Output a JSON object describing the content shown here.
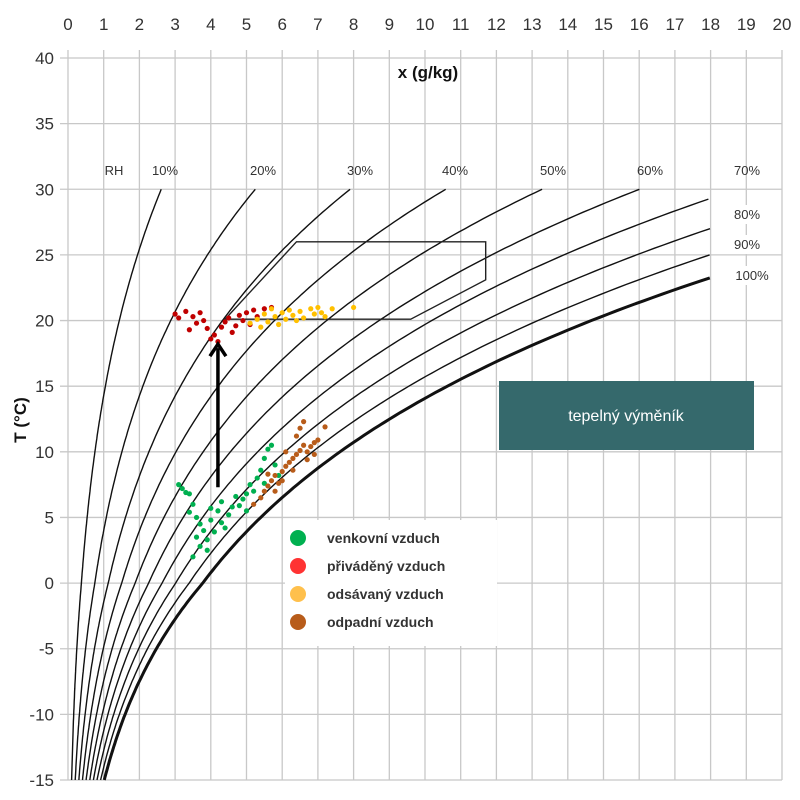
{
  "chart_data": {
    "type": "scatter",
    "xlabel": "x (g/kg)",
    "ylabel": "T (°C)",
    "xlim": [
      0,
      20
    ],
    "ylim": [
      -15,
      40
    ],
    "x_ticks": [
      0,
      1,
      2,
      3,
      4,
      5,
      6,
      7,
      8,
      9,
      10,
      11,
      12,
      13,
      14,
      15,
      16,
      17,
      18,
      19,
      20
    ],
    "y_ticks": [
      40,
      35,
      30,
      25,
      20,
      15,
      10,
      5,
      0,
      -5,
      -10,
      -15
    ],
    "x_axis_position": "top",
    "grid": true,
    "rh_curves": {
      "prefix_label": "RH",
      "values": [
        10,
        20,
        30,
        40,
        50,
        60,
        70,
        80,
        90,
        100
      ],
      "labels": [
        "10%",
        "20%",
        "30%",
        "40%",
        "50%",
        "60%",
        "70%",
        "80%",
        "90%",
        "100%"
      ],
      "x_max": 18,
      "T_max": 30
    },
    "comfort_zone": [
      [
        4.4,
        20.1
      ],
      [
        6.4,
        26.0
      ],
      [
        11.7,
        26.0
      ],
      [
        11.7,
        23.1
      ],
      [
        9.6,
        20.1
      ]
    ],
    "arrow": {
      "x": 4.2,
      "from_T": 7.3,
      "to_T": 18.2
    },
    "annotation_box": {
      "text": "tepelný výměník",
      "color": "#35696c"
    },
    "legend_position": "center-bottom",
    "series": [
      {
        "name": "venkovní vzduch",
        "legend_color": "#00b050",
        "point_color": "#00b050",
        "points": [
          [
            3.1,
            7.5
          ],
          [
            3.2,
            7.2
          ],
          [
            3.3,
            6.9
          ],
          [
            3.5,
            6.0
          ],
          [
            3.4,
            5.4
          ],
          [
            3.6,
            5.0
          ],
          [
            3.7,
            4.5
          ],
          [
            3.8,
            4.0
          ],
          [
            3.6,
            3.5
          ],
          [
            3.7,
            2.8
          ],
          [
            3.5,
            2.0
          ],
          [
            3.9,
            3.3
          ],
          [
            4.0,
            4.8
          ],
          [
            4.2,
            5.5
          ],
          [
            4.1,
            3.9
          ],
          [
            4.3,
            4.6
          ],
          [
            4.5,
            5.2
          ],
          [
            4.6,
            5.8
          ],
          [
            4.8,
            5.9
          ],
          [
            4.9,
            6.4
          ],
          [
            5.0,
            6.8
          ],
          [
            5.1,
            7.5
          ],
          [
            5.2,
            7.0
          ],
          [
            5.3,
            8.0
          ],
          [
            5.4,
            8.6
          ],
          [
            5.5,
            9.5
          ],
          [
            5.6,
            10.2
          ],
          [
            5.7,
            10.5
          ],
          [
            5.8,
            9.0
          ],
          [
            5.9,
            8.2
          ],
          [
            4.4,
            4.2
          ],
          [
            4.7,
            6.6
          ],
          [
            3.9,
            2.5
          ],
          [
            4.0,
            5.7
          ],
          [
            5.0,
            5.5
          ],
          [
            3.4,
            6.8
          ],
          [
            4.3,
            6.2
          ],
          [
            5.5,
            7.6
          ]
        ]
      },
      {
        "name": "přiváděný vzduch",
        "legend_color": "#ff3333",
        "point_color": "#c00000",
        "points": [
          [
            3.0,
            20.5
          ],
          [
            3.1,
            20.2
          ],
          [
            3.3,
            20.7
          ],
          [
            3.5,
            20.3
          ],
          [
            3.6,
            19.8
          ],
          [
            3.7,
            20.6
          ],
          [
            3.8,
            20.0
          ],
          [
            3.9,
            19.4
          ],
          [
            4.0,
            18.6
          ],
          [
            4.1,
            18.9
          ],
          [
            4.3,
            19.5
          ],
          [
            4.4,
            19.9
          ],
          [
            4.5,
            20.2
          ],
          [
            4.6,
            19.1
          ],
          [
            4.7,
            19.6
          ],
          [
            4.8,
            20.4
          ],
          [
            4.9,
            20.0
          ],
          [
            5.0,
            20.6
          ],
          [
            5.2,
            20.8
          ],
          [
            5.3,
            20.3
          ],
          [
            5.5,
            20.9
          ],
          [
            5.7,
            21.0
          ],
          [
            3.4,
            19.3
          ],
          [
            4.2,
            18.4
          ],
          [
            5.1,
            19.7
          ]
        ]
      },
      {
        "name": "odsávaný vzduch",
        "legend_color": "#ffc04c",
        "point_color": "#ffc000",
        "points": [
          [
            5.1,
            19.8
          ],
          [
            5.3,
            20.1
          ],
          [
            5.5,
            20.5
          ],
          [
            5.6,
            19.9
          ],
          [
            5.8,
            20.3
          ],
          [
            6.0,
            20.6
          ],
          [
            6.1,
            20.1
          ],
          [
            6.2,
            20.8
          ],
          [
            6.3,
            20.4
          ],
          [
            6.5,
            20.7
          ],
          [
            6.6,
            20.2
          ],
          [
            6.8,
            20.9
          ],
          [
            6.9,
            20.5
          ],
          [
            7.0,
            21.0
          ],
          [
            7.1,
            20.6
          ],
          [
            7.2,
            20.3
          ],
          [
            5.4,
            19.5
          ],
          [
            5.9,
            19.7
          ],
          [
            6.4,
            20.0
          ],
          [
            7.4,
            20.9
          ],
          [
            8.0,
            21.0
          ],
          [
            5.7,
            20.9
          ]
        ]
      },
      {
        "name": "odpadní vzduch",
        "legend_color": "#b85c1a",
        "point_color": "#b85c1a",
        "points": [
          [
            5.2,
            6.0
          ],
          [
            5.4,
            6.5
          ],
          [
            5.5,
            7.0
          ],
          [
            5.6,
            7.4
          ],
          [
            5.7,
            7.8
          ],
          [
            5.8,
            8.2
          ],
          [
            5.9,
            7.6
          ],
          [
            6.0,
            8.5
          ],
          [
            6.1,
            8.9
          ],
          [
            6.2,
            9.2
          ],
          [
            6.3,
            9.5
          ],
          [
            6.4,
            9.8
          ],
          [
            6.5,
            10.1
          ],
          [
            6.6,
            10.5
          ],
          [
            6.7,
            10.0
          ],
          [
            6.8,
            10.4
          ],
          [
            6.9,
            10.7
          ],
          [
            7.0,
            10.9
          ],
          [
            6.4,
            11.2
          ],
          [
            6.5,
            11.8
          ],
          [
            6.6,
            12.3
          ],
          [
            7.2,
            11.9
          ],
          [
            6.0,
            7.8
          ],
          [
            5.8,
            7.0
          ],
          [
            6.3,
            8.6
          ],
          [
            6.7,
            9.4
          ],
          [
            6.1,
            10.0
          ],
          [
            6.9,
            9.8
          ],
          [
            5.6,
            8.3
          ]
        ]
      }
    ]
  }
}
